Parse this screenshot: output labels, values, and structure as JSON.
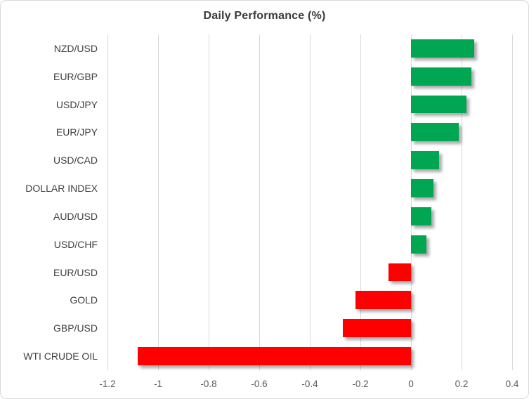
{
  "chart_data": {
    "type": "bar",
    "orientation": "horizontal",
    "title": "Daily Performance (%)",
    "categories": [
      "NZD/USD",
      "EUR/GBP",
      "USD/JPY",
      "EUR/JPY",
      "USD/CAD",
      "DOLLAR INDEX",
      "AUD/USD",
      "USD/CHF",
      "EUR/USD",
      "GOLD",
      "GBP/USD",
      "WTI CRUDE OIL"
    ],
    "values": [
      0.25,
      0.24,
      0.22,
      0.19,
      0.11,
      0.09,
      0.08,
      0.06,
      -0.09,
      -0.22,
      -0.27,
      -1.08
    ],
    "xlabel": "",
    "ylabel": "",
    "xlim": [
      -1.2,
      0.4
    ],
    "grid": true,
    "legend_position": "none",
    "x_ticks": [
      {
        "label": "-1.2",
        "value": -1.2
      },
      {
        "label": "-1",
        "value": -1.0
      },
      {
        "label": "-0.8",
        "value": -0.8
      },
      {
        "label": "-0.6",
        "value": -0.6
      },
      {
        "label": "-0.4",
        "value": -0.4
      },
      {
        "label": "-0.2",
        "value": -0.2
      },
      {
        "label": "0",
        "value": 0.0
      },
      {
        "label": "0.2",
        "value": 0.2
      },
      {
        "label": "0.4",
        "value": 0.4
      }
    ],
    "colors": {
      "positive_bar": "#00A651",
      "negative_bar": "#FF0000",
      "gridline": "#D9D9D9",
      "frame_border": "#D9D9D9",
      "title_text": "#3A3A3A",
      "category_text": "#404040",
      "tick_text": "#595959",
      "background": "#FFFFFF"
    }
  }
}
